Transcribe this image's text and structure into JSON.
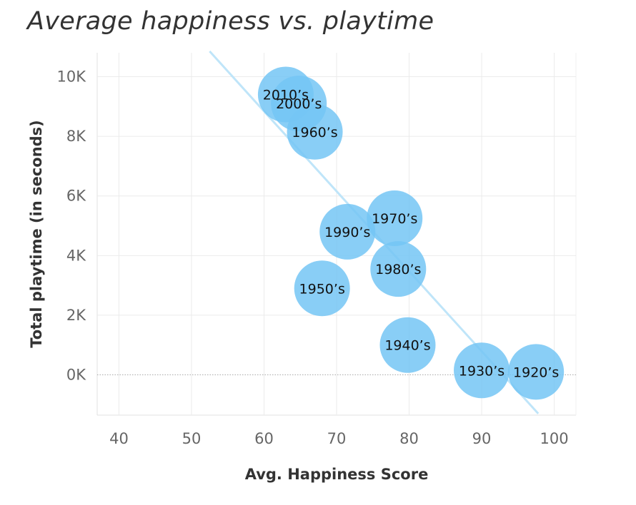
{
  "chart_data": {
    "type": "scatter",
    "title": "Average happiness vs. playtime",
    "xlabel": "Avg. Happiness Score",
    "ylabel": "Total playtime (in seconds)",
    "xlim": [
      37,
      103
    ],
    "ylim": [
      -1350,
      10800
    ],
    "x_ticks": [
      40,
      50,
      60,
      70,
      80,
      90,
      100
    ],
    "y_ticks": [
      {
        "value": 0,
        "label": "0K"
      },
      {
        "value": 2000,
        "label": "2K"
      },
      {
        "value": 4000,
        "label": "4K"
      },
      {
        "value": 6000,
        "label": "6K"
      },
      {
        "value": 8000,
        "label": "8K"
      },
      {
        "value": 10000,
        "label": "10K"
      }
    ],
    "grid": true,
    "zero_line": true,
    "points": [
      {
        "label": "2010’s",
        "x": 63.0,
        "y": 9400
      },
      {
        "label": "2000’s",
        "x": 64.8,
        "y": 9100
      },
      {
        "label": "1960’s",
        "x": 67.0,
        "y": 8150
      },
      {
        "label": "1970’s",
        "x": 78.0,
        "y": 5250
      },
      {
        "label": "1990’s",
        "x": 71.5,
        "y": 4800
      },
      {
        "label": "1980’s",
        "x": 78.5,
        "y": 3550
      },
      {
        "label": "1950’s",
        "x": 68.0,
        "y": 2900
      },
      {
        "label": "1940’s",
        "x": 79.8,
        "y": 1000
      },
      {
        "label": "1930’s",
        "x": 90.0,
        "y": 150
      },
      {
        "label": "1920’s",
        "x": 97.5,
        "y": 100
      }
    ],
    "trend_line": {
      "x": [
        52.5,
        97.8
      ],
      "y": [
        10850,
        -1300
      ]
    },
    "colors": {
      "point": "#74c6f4",
      "trend": "#bfe5f9",
      "grid": "#ebebeb",
      "zero_line": "#aaaaaa"
    }
  }
}
